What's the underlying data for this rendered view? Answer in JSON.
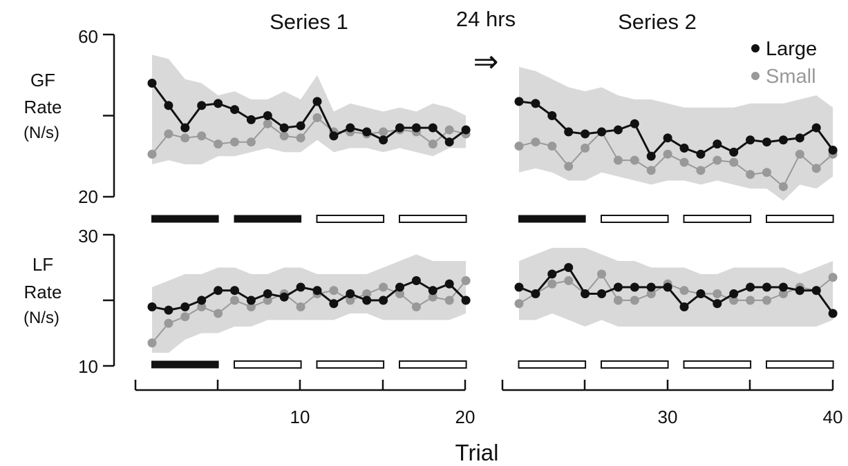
{
  "chart_data": {
    "type": "line",
    "series_labels": [
      "Series 1",
      "Series 2"
    ],
    "gap_label": "24 hrs",
    "gap_arrow": "⇒",
    "legend": [
      {
        "name": "Large",
        "color": "#111111"
      },
      {
        "name": "Small",
        "color": "#999999"
      }
    ],
    "legend_position": "top-right",
    "band_color": "#d9d9d9",
    "xlabel": "Trial",
    "x_ticks": [
      10,
      20,
      30,
      40
    ],
    "panels": [
      {
        "id": "gf",
        "ylabel": [
          "GF",
          "Rate",
          "(N/s)"
        ],
        "ylim": [
          20,
          60
        ],
        "y_ticks": [
          "60",
          "20"
        ],
        "series": [
          {
            "name": "Large",
            "x": [
              1,
              2,
              3,
              4,
              5,
              6,
              7,
              8,
              9,
              10,
              11,
              12,
              13,
              14,
              15,
              16,
              17,
              18,
              19,
              20,
              21,
              22,
              23,
              24,
              25,
              26,
              27,
              28,
              29,
              30,
              31,
              32,
              33,
              34,
              35,
              36,
              37,
              38,
              39,
              40
            ],
            "y": [
              48,
              42.5,
              37,
              42.5,
              43,
              41.5,
              39,
              40,
              37,
              37.5,
              43.5,
              35,
              37,
              36,
              34,
              37,
              37,
              37,
              33.5,
              36.5,
              43.5,
              43,
              40,
              36,
              35.5,
              36,
              36.5,
              38,
              30,
              34.5,
              32,
              30.5,
              33,
              31,
              34,
              33.5,
              34,
              34.5,
              37,
              31.5
            ]
          },
          {
            "name": "Small",
            "x": [
              1,
              2,
              3,
              4,
              5,
              6,
              7,
              8,
              9,
              10,
              11,
              12,
              13,
              14,
              15,
              16,
              17,
              18,
              19,
              20,
              21,
              22,
              23,
              24,
              25,
              26,
              27,
              28,
              29,
              30,
              31,
              32,
              33,
              34,
              35,
              36,
              37,
              38,
              39,
              40
            ],
            "y": [
              30.5,
              35.5,
              34.5,
              35,
              33,
              33.5,
              33.5,
              38,
              35,
              34.5,
              39.5,
              36,
              36,
              35.5,
              36,
              36.5,
              36,
              33,
              36.5,
              35.5,
              32.5,
              33.5,
              32.5,
              27.5,
              32,
              36,
              29,
              29,
              26.5,
              30.5,
              28.5,
              26.5,
              29,
              28.5,
              25.5,
              26,
              22.5,
              30.5,
              27,
              30.5
            ]
          }
        ],
        "band": {
          "series1": {
            "x": [
              1,
              2,
              3,
              4,
              5,
              6,
              7,
              8,
              9,
              10,
              11,
              12,
              13,
              14,
              15,
              16,
              17,
              18,
              19,
              20
            ],
            "upper": [
              55,
              54,
              49,
              48,
              45,
              46,
              44,
              44,
              46,
              44,
              50,
              41,
              43,
              42,
              41,
              42,
              41,
              43,
              42,
              40
            ],
            "lower": [
              28,
              29,
              28,
              28,
              30,
              30,
              31,
              32,
              31,
              31,
              34,
              31,
              32,
              32,
              31,
              32,
              31,
              30,
              32,
              32
            ]
          },
          "series2": {
            "x": [
              21,
              22,
              23,
              24,
              25,
              26,
              27,
              28,
              29,
              30,
              31,
              32,
              33,
              34,
              35,
              36,
              37,
              38,
              39,
              40
            ],
            "upper": [
              52,
              51,
              49,
              47,
              46,
              47,
              45,
              44,
              44,
              43,
              42,
              42,
              42,
              42,
              43,
              43,
              43,
              44,
              45,
              42
            ],
            "lower": [
              26,
              27,
              26,
              24,
              24,
              26,
              25,
              24,
              23,
              24,
              24,
              23,
              24,
              23,
              22,
              22,
              19,
              23,
              22,
              25
            ]
          }
        }
      },
      {
        "id": "lf",
        "ylabel": [
          "LF",
          "Rate",
          "(N/s)"
        ],
        "ylim": [
          10,
          30
        ],
        "y_ticks": [
          "30",
          "10"
        ],
        "series": [
          {
            "name": "Large",
            "x": [
              1,
              2,
              3,
              4,
              5,
              6,
              7,
              8,
              9,
              10,
              11,
              12,
              13,
              14,
              15,
              16,
              17,
              18,
              19,
              20,
              21,
              22,
              23,
              24,
              25,
              26,
              27,
              28,
              29,
              30,
              31,
              32,
              33,
              34,
              35,
              36,
              37,
              38,
              39,
              40
            ],
            "y": [
              19,
              18.5,
              19,
              20,
              21.5,
              21.5,
              20,
              21,
              20.5,
              22,
              21.5,
              19.5,
              21,
              20,
              20,
              22,
              23,
              21.5,
              22.5,
              20,
              22,
              21,
              24,
              25,
              21,
              21,
              22,
              22,
              22,
              22,
              19,
              21,
              19.5,
              21,
              22,
              22,
              22,
              21.5,
              21.5,
              18
            ]
          },
          {
            "name": "Small",
            "x": [
              1,
              2,
              3,
              4,
              5,
              6,
              7,
              8,
              9,
              10,
              11,
              12,
              13,
              14,
              15,
              16,
              17,
              18,
              19,
              20,
              21,
              22,
              23,
              24,
              25,
              26,
              27,
              28,
              29,
              30,
              31,
              32,
              33,
              34,
              35,
              36,
              37,
              38,
              39,
              40
            ],
            "y": [
              13.5,
              16.5,
              17.5,
              19,
              18,
              20,
              19,
              20,
              21,
              19,
              21,
              21.5,
              20,
              21,
              22,
              21,
              19,
              20.5,
              20,
              23,
              19.5,
              21,
              22.5,
              23,
              21,
              24,
              20,
              20,
              21,
              22.5,
              21.5,
              21,
              21,
              20,
              20,
              20,
              21,
              22,
              21.5,
              23.5
            ]
          }
        ],
        "band": {
          "series1": {
            "x": [
              1,
              2,
              3,
              4,
              5,
              6,
              7,
              8,
              9,
              10,
              11,
              12,
              13,
              14,
              15,
              16,
              17,
              18,
              19,
              20
            ],
            "upper": [
              22,
              23,
              24,
              24,
              25,
              25,
              24,
              24,
              25,
              25,
              24,
              24,
              24,
              24,
              25,
              26,
              27,
              26,
              26,
              26
            ],
            "lower": [
              12,
              12,
              14,
              15,
              15,
              16,
              16,
              17,
              17,
              17,
              17,
              17,
              18,
              18,
              17,
              17,
              17,
              17,
              17,
              18
            ]
          },
          "series2": {
            "x": [
              21,
              22,
              23,
              24,
              25,
              26,
              27,
              28,
              29,
              30,
              31,
              32,
              33,
              34,
              35,
              36,
              37,
              38,
              39,
              40
            ],
            "upper": [
              26,
              27,
              28,
              28,
              28,
              27,
              26,
              26,
              25,
              25,
              25,
              24,
              24,
              25,
              25,
              25,
              25,
              24,
              25,
              26
            ],
            "lower": [
              17,
              17,
              18,
              17,
              16,
              17,
              16,
              16,
              16,
              16,
              16,
              16,
              16,
              16,
              16,
              16,
              16,
              16,
              16,
              17
            ]
          }
        }
      }
    ],
    "blocks": [
      {
        "panel": "gf",
        "trials": [
          1,
          5
        ],
        "filled": true
      },
      {
        "panel": "gf",
        "trials": [
          6,
          10
        ],
        "filled": true
      },
      {
        "panel": "gf",
        "trials": [
          11,
          15
        ],
        "filled": false
      },
      {
        "panel": "gf",
        "trials": [
          16,
          20
        ],
        "filled": false
      },
      {
        "panel": "gf",
        "trials": [
          21,
          25
        ],
        "filled": true
      },
      {
        "panel": "gf",
        "trials": [
          26,
          30
        ],
        "filled": false
      },
      {
        "panel": "gf",
        "trials": [
          31,
          35
        ],
        "filled": false
      },
      {
        "panel": "gf",
        "trials": [
          36,
          40
        ],
        "filled": false
      },
      {
        "panel": "lf",
        "trials": [
          1,
          5
        ],
        "filled": true
      },
      {
        "panel": "lf",
        "trials": [
          6,
          10
        ],
        "filled": false
      },
      {
        "panel": "lf",
        "trials": [
          11,
          15
        ],
        "filled": false
      },
      {
        "panel": "lf",
        "trials": [
          16,
          20
        ],
        "filled": false
      },
      {
        "panel": "lf",
        "trials": [
          21,
          25
        ],
        "filled": false
      },
      {
        "panel": "lf",
        "trials": [
          26,
          30
        ],
        "filled": false
      },
      {
        "panel": "lf",
        "trials": [
          31,
          35
        ],
        "filled": false
      },
      {
        "panel": "lf",
        "trials": [
          36,
          40
        ],
        "filled": false
      }
    ]
  }
}
